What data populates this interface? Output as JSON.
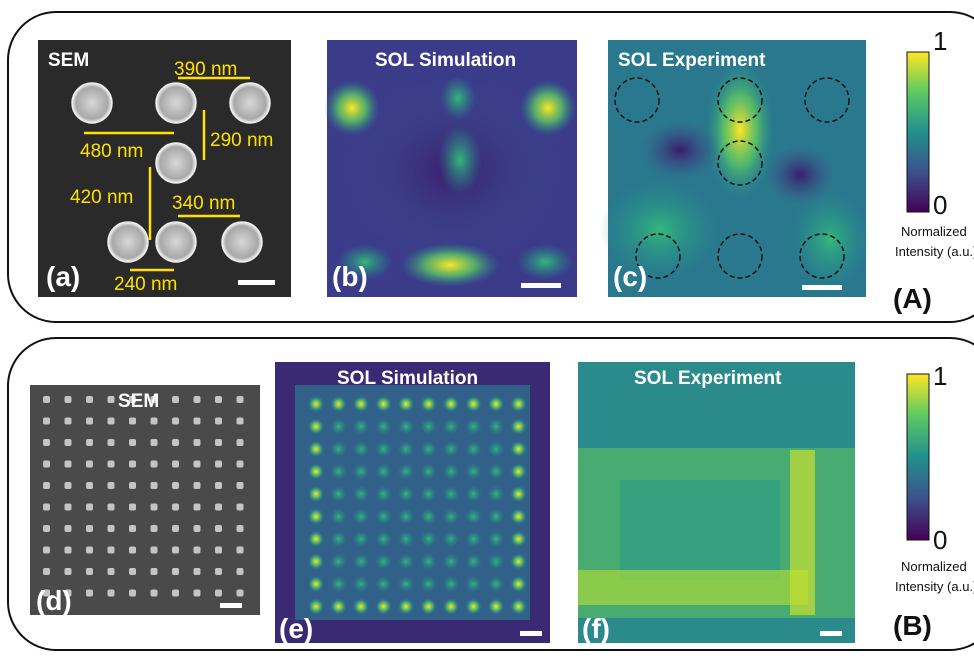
{
  "panel_A": {
    "label": "(A)",
    "sem": {
      "label": "(a)",
      "title": "SEM",
      "dimensions": [
        "390 nm",
        "480 nm",
        "290 nm",
        "420 nm",
        "340 nm",
        "240 nm"
      ]
    },
    "simulation": {
      "label": "(b)",
      "title": "SOL Simulation"
    },
    "experiment": {
      "label": "(c)",
      "title": "SOL Experiment"
    },
    "colorbar": {
      "max": "1",
      "min": "0",
      "label_line1": "Normalized",
      "label_line2": "Intensity (a.u.)"
    }
  },
  "panel_B": {
    "label": "(B)",
    "sem": {
      "label": "(d)",
      "title": "SEM"
    },
    "simulation": {
      "label": "(e)",
      "title": "SOL Simulation"
    },
    "experiment": {
      "label": "(f)",
      "title": "SOL Experiment"
    },
    "colorbar": {
      "max": "1",
      "min": "0",
      "label_line1": "Normalized",
      "label_line2": "Intensity (a.u.)"
    }
  }
}
